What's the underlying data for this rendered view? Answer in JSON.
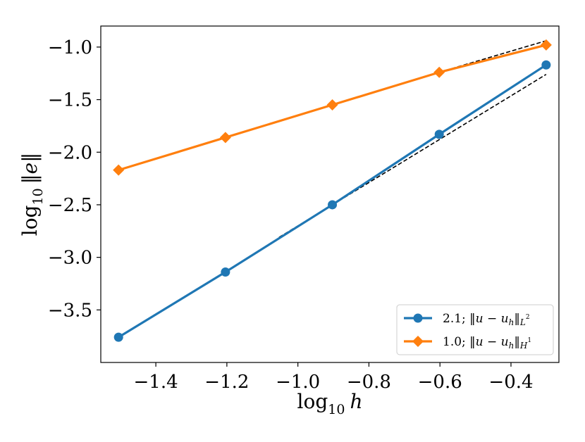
{
  "chart_data": {
    "type": "line",
    "xlabel": {
      "prefix": "log",
      "sub": "10",
      "var": "h"
    },
    "ylabel": {
      "prefix": "log",
      "sub": "10",
      "var": "‖e‖"
    },
    "xlim": [
      -1.555,
      -0.265
    ],
    "ylim": [
      -4.0,
      -0.8
    ],
    "x_ticks": [
      -1.4,
      -1.2,
      -1.0,
      -0.8,
      -0.6,
      -0.4
    ],
    "x_tick_labels": [
      "−1.4",
      "−1.2",
      "−1.0",
      "−0.8",
      "−0.6",
      "−0.4"
    ],
    "y_ticks": [
      -1.0,
      -1.5,
      -2.0,
      -2.5,
      -3.0,
      -3.5
    ],
    "y_tick_labels": [
      "−1.0",
      "−1.5",
      "−2.0",
      "−2.5",
      "−3.0",
      "−3.5"
    ],
    "grid": false,
    "legend_position": "bottom-right",
    "series": [
      {
        "name": "2.1; ‖u − uh‖L2",
        "legend": {
          "rate": "2.1;",
          "expr": "‖u − u",
          "sub": "h",
          "norm": "‖",
          "normsub": "L",
          "normsup": "2"
        },
        "color": "#1f77b4",
        "marker": "circle",
        "x": [
          -1.505,
          -1.204,
          -0.903,
          -0.602,
          -0.301
        ],
        "y": [
          -3.76,
          -3.14,
          -2.5,
          -1.83,
          -1.17
        ]
      },
      {
        "name": "1.0; ‖u − uh‖H1",
        "legend": {
          "rate": "1.0;",
          "expr": "‖u − u",
          "sub": "h",
          "norm": "‖",
          "normsub": "H",
          "normsup": "1"
        },
        "color": "#ff7f0e",
        "marker": "diamond",
        "x": [
          -1.505,
          -1.204,
          -0.903,
          -0.602,
          -0.301
        ],
        "y": [
          -2.17,
          -1.86,
          -1.55,
          -1.24,
          -0.98
        ]
      }
    ],
    "reference_lines": [
      {
        "color": "#000000",
        "style": "dashed",
        "x": [
          -1.053,
          -0.301
        ],
        "y": [
          -2.81,
          -1.26
        ]
      },
      {
        "color": "#000000",
        "style": "dashed",
        "x": [
          -0.602,
          -0.301
        ],
        "y": [
          -1.24,
          -0.94
        ]
      }
    ]
  }
}
